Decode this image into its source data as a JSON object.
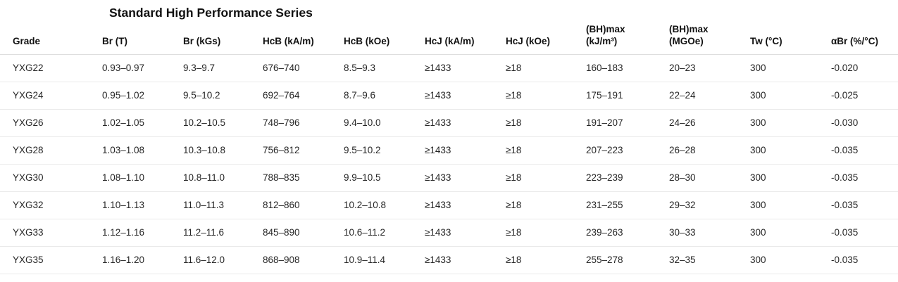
{
  "title": "Standard High Performance Series",
  "table": {
    "columns": [
      "Grade",
      "Br (T)",
      "Br (kGs)",
      "HcB (kA/m)",
      "HcB (kOe)",
      "HcJ (kA/m)",
      "HcJ (kOe)",
      "(BH)max\n(kJ/m³)",
      "(BH)max\n(MGOe)",
      "Tw (°C)",
      "αBr (%/°C)"
    ],
    "rows": [
      [
        "YXG22",
        "0.93–0.97",
        "9.3–9.7",
        "676–740",
        "8.5–9.3",
        "≥1433",
        "≥18",
        "160–183",
        "20–23",
        "300",
        "-0.020"
      ],
      [
        "YXG24",
        "0.95–1.02",
        "9.5–10.2",
        "692–764",
        "8.7–9.6",
        "≥1433",
        "≥18",
        "175–191",
        "22–24",
        "300",
        "-0.025"
      ],
      [
        "YXG26",
        "1.02–1.05",
        "10.2–10.5",
        "748–796",
        "9.4–10.0",
        "≥1433",
        "≥18",
        "191–207",
        "24–26",
        "300",
        "-0.030"
      ],
      [
        "YXG28",
        "1.03–1.08",
        "10.3–10.8",
        "756–812",
        "9.5–10.2",
        "≥1433",
        "≥18",
        "207–223",
        "26–28",
        "300",
        "-0.035"
      ],
      [
        "YXG30",
        "1.08–1.10",
        "10.8–11.0",
        "788–835",
        "9.9–10.5",
        "≥1433",
        "≥18",
        "223–239",
        "28–30",
        "300",
        "-0.035"
      ],
      [
        "YXG32",
        "1.10–1.13",
        "11.0–11.3",
        "812–860",
        "10.2–10.8",
        "≥1433",
        "≥18",
        "231–255",
        "29–32",
        "300",
        "-0.035"
      ],
      [
        "YXG33",
        "1.12–1.16",
        "11.2–11.6",
        "845–890",
        "10.6–11.2",
        "≥1433",
        "≥18",
        "239–263",
        "30–33",
        "300",
        "-0.035"
      ],
      [
        "YXG35",
        "1.16–1.20",
        "11.6–12.0",
        "868–908",
        "10.9–11.4",
        "≥1433",
        "≥18",
        "255–278",
        "32–35",
        "300",
        "-0.035"
      ]
    ]
  }
}
